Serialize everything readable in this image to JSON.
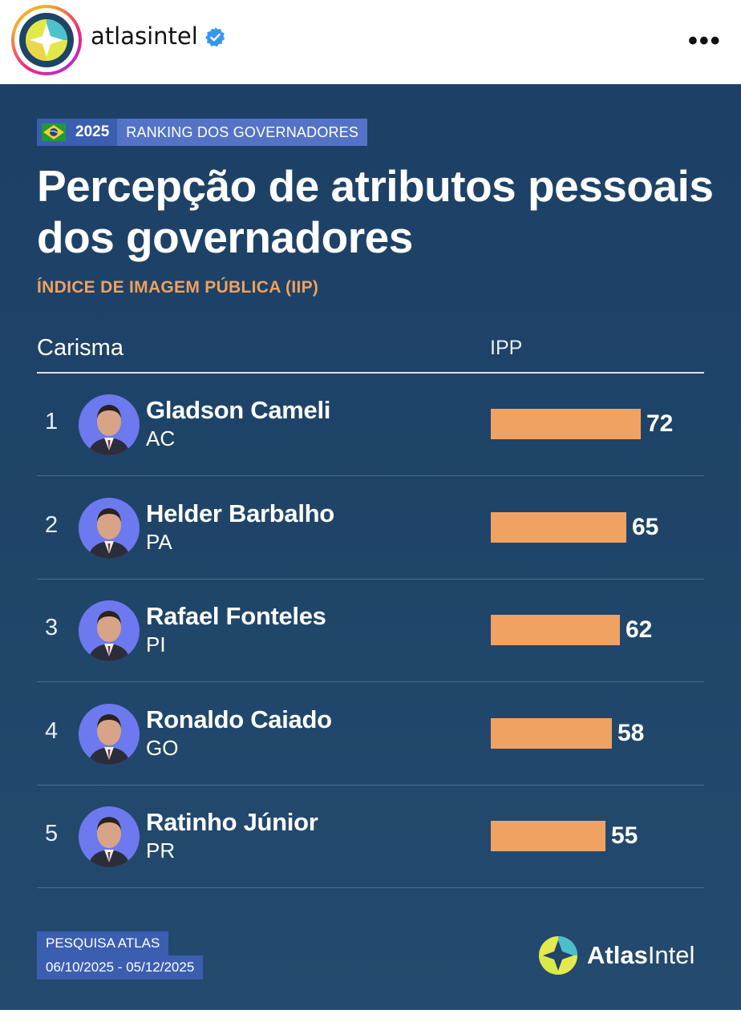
{
  "instagram": {
    "username": "atlasintel",
    "verified_icon": "verified-badge-icon",
    "more_icon": "more-options-icon",
    "more_label": "•••"
  },
  "tag": {
    "year": "2025",
    "title": "RANKING DOS GOVERNADORES",
    "flag_icon": "brazil-flag-icon"
  },
  "title": "Percepção de atributos pessoais dos governadores",
  "subtitle": "ÍNDICE DE IMAGEM PÚBLICA (IIP)",
  "columns": {
    "left": "Carisma",
    "right": "IPP"
  },
  "rows": [
    {
      "rank": "1",
      "name": "Gladson Cameli",
      "state": "AC",
      "value": "72"
    },
    {
      "rank": "2",
      "name": "Helder Barbalho",
      "state": "PA",
      "value": "65"
    },
    {
      "rank": "3",
      "name": "Rafael Fonteles",
      "state": "PI",
      "value": "62"
    },
    {
      "rank": "4",
      "name": "Ronaldo Caiado",
      "state": "GO",
      "value": "58"
    },
    {
      "rank": "5",
      "name": "Ratinho Júnior",
      "state": "PR",
      "value": "55"
    }
  ],
  "footer": {
    "line1": "PESQUISA ATLAS",
    "line2": "06/10/2025 - 05/12/2025"
  },
  "brand": {
    "name_bold": "Atlas",
    "name_regular": "Intel",
    "logo_icon": "atlasintel-logo-icon"
  },
  "colors": {
    "background": "#1f4268",
    "bar": "#f0a263",
    "subtitle": "#f0a15e",
    "tag": "#3c5eb0"
  },
  "chart_data": {
    "type": "bar",
    "orientation": "horizontal",
    "categories": [
      "Gladson Cameli",
      "Helder Barbalho",
      "Rafael Fonteles",
      "Ronaldo Caiado",
      "Ratinho Júnior"
    ],
    "values": [
      72,
      65,
      62,
      58,
      55
    ],
    "title": "Percepção de atributos pessoais dos governadores",
    "subtitle": "ÍNDICE DE IMAGEM PÚBLICA (IIP)",
    "xlabel": "IPP",
    "ylabel": "Carisma",
    "xlim": [
      0,
      100
    ],
    "grid": false,
    "legend": "none"
  }
}
